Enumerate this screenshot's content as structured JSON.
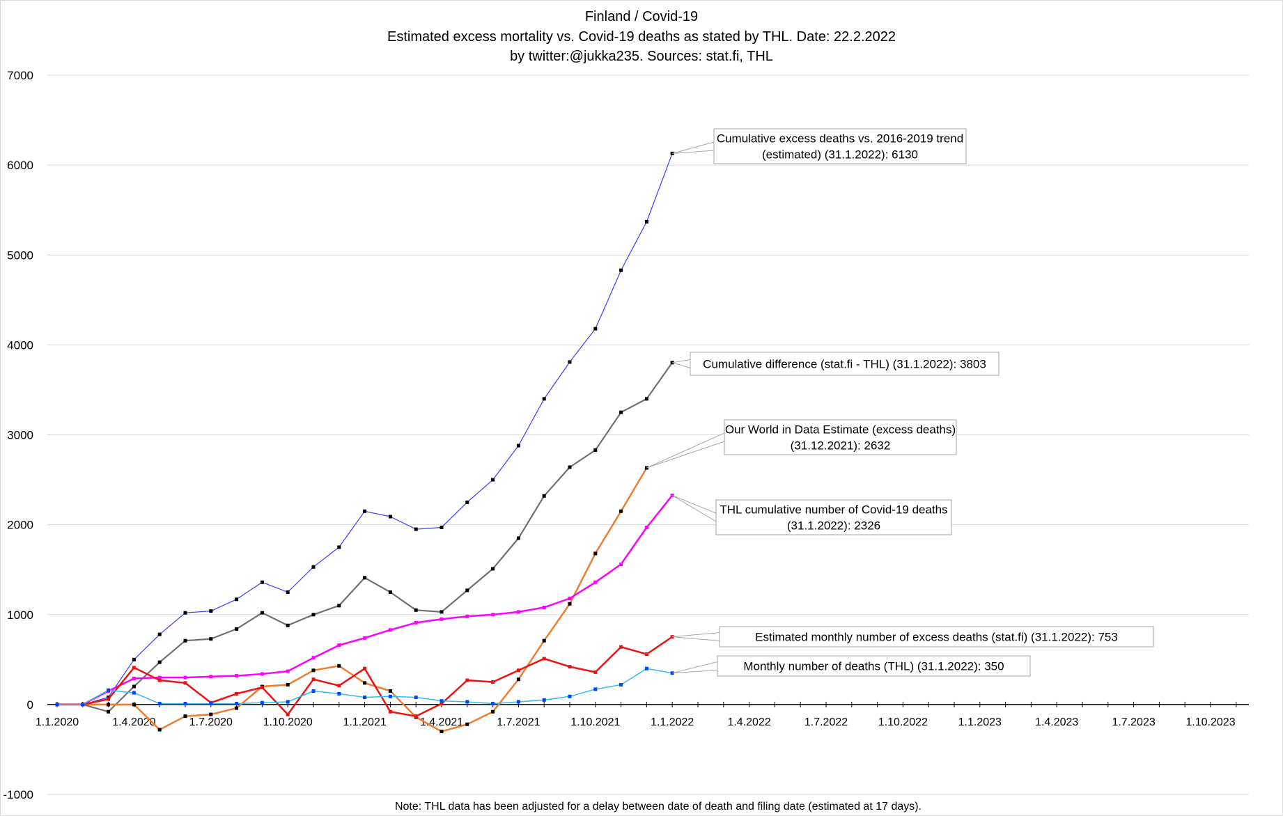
{
  "chart_data": {
    "type": "line",
    "title": [
      "Finland / Covid-19",
      "Estimated excess mortality vs. Covid-19 deaths as stated by THL. Date: 22.2.2022",
      "by twitter:@jukka235.  Sources: stat.fi, THL"
    ],
    "note": "Note: THL data has been adjusted for a delay between date of death and filing date (estimated at 17 days).",
    "ylim": [
      -1000,
      7000
    ],
    "y_ticks": [
      "7000",
      "6000",
      "5000",
      "4000",
      "3000",
      "2000",
      "1000",
      "0",
      "-1000"
    ],
    "x_tick_labels": [
      "1.1.2020",
      "1.4.2020",
      "1.7.2020",
      "1.10.2020",
      "1.1.2021",
      "1.4.2021",
      "1.7.2021",
      "1.10.2021",
      "1.1.2022",
      "1.4.2022",
      "1.7.2022",
      "1.10.2022",
      "1.1.2023",
      "1.4.2023",
      "1.7.2023",
      "1.10.2023"
    ],
    "grid": "horizontal",
    "x": [
      "1.1.2020",
      "1.2.2020",
      "1.3.2020",
      "1.4.2020",
      "1.5.2020",
      "1.6.2020",
      "1.7.2020",
      "1.8.2020",
      "1.9.2020",
      "1.10.2020",
      "1.11.2020",
      "1.12.2020",
      "1.1.2021",
      "1.2.2021",
      "1.3.2021",
      "1.4.2021",
      "1.5.2021",
      "1.6.2021",
      "1.7.2021",
      "1.8.2021",
      "1.9.2021",
      "1.10.2021",
      "1.11.2021",
      "1.12.2021",
      "1.1.2022",
      "1.2.2022"
    ],
    "series": [
      {
        "color": "#3b3bff",
        "width": 1.2,
        "marker": "#000000",
        "values": [
          0,
          0,
          80,
          500,
          780,
          1020,
          1040,
          1170,
          1360,
          1250,
          1530,
          1750,
          2150,
          2090,
          1950,
          1970,
          2250,
          2500,
          2880,
          3400,
          3810,
          4180,
          4830,
          5370,
          6130,
          null
        ],
        "annotation": [
          "Cumulative excess deaths vs. 2016-2019 trend",
          "(estimated) (31.1.2022): 6130"
        ]
      },
      {
        "color": "#707070",
        "width": 2.2,
        "marker": "#000000",
        "values": [
          0,
          0,
          -80,
          200,
          470,
          710,
          730,
          840,
          1020,
          880,
          1000,
          1100,
          1410,
          1250,
          1050,
          1030,
          1270,
          1510,
          1850,
          2320,
          2640,
          2830,
          3250,
          3400,
          3803,
          null
        ],
        "annotation": [
          "Cumulative difference (stat.fi - THL) (31.1.2022): 3803"
        ]
      },
      {
        "color": "#ed7d31",
        "width": 2.5,
        "marker": "#000000",
        "values": [
          0,
          0,
          0,
          0,
          -280,
          -130,
          -110,
          -40,
          200,
          220,
          380,
          430,
          240,
          150,
          -140,
          -300,
          -220,
          -80,
          280,
          710,
          1120,
          1680,
          2150,
          2632,
          null,
          null
        ],
        "annotation": [
          "Our World in  Data Estimate (excess deaths)",
          "(31.12.2021): 2632"
        ]
      },
      {
        "color": "#ff00ff",
        "width": 2.5,
        "marker": "#ff00ff",
        "values": [
          0,
          0,
          150,
          290,
          300,
          300,
          310,
          320,
          340,
          370,
          520,
          660,
          740,
          830,
          910,
          950,
          980,
          1000,
          1030,
          1080,
          1180,
          1360,
          1560,
          1970,
          2326,
          null
        ],
        "annotation": [
          "THL cumulative number of Covid-19 deaths",
          "(31.1.2022): 2326"
        ]
      },
      {
        "color": "#ee1111",
        "width": 2.5,
        "marker": "#ee1111",
        "values": [
          0,
          0,
          60,
          410,
          270,
          240,
          20,
          120,
          190,
          -110,
          280,
          210,
          400,
          -80,
          -130,
          10,
          270,
          250,
          380,
          510,
          420,
          360,
          640,
          560,
          753,
          null
        ],
        "annotation": [
          "Estimated monthly number of excess deaths (stat.fi) (31.1.2022): 753"
        ]
      },
      {
        "color": "#33bbee",
        "width": 1.5,
        "marker": "#0044ff",
        "values": [
          0,
          0,
          160,
          130,
          10,
          10,
          10,
          10,
          20,
          30,
          150,
          120,
          80,
          90,
          80,
          40,
          30,
          10,
          30,
          50,
          90,
          170,
          220,
          400,
          350,
          null
        ],
        "annotation": [
          "Monthly number of deaths (THL) (31.1.2022): 350"
        ]
      }
    ]
  }
}
